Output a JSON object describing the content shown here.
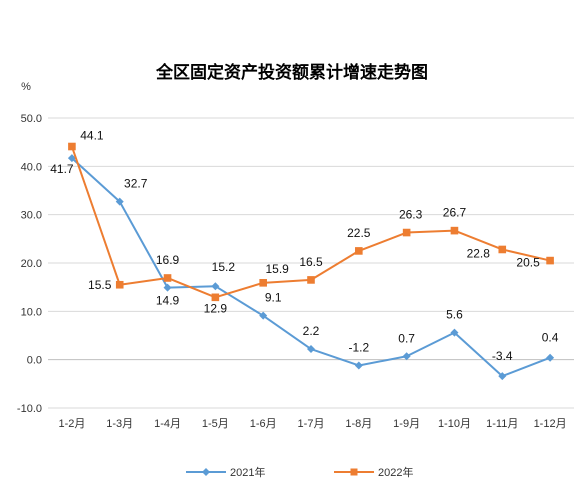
{
  "chart_data": {
    "type": "line",
    "title": "全区固定资产投资额累计增速走势图",
    "ylabel": "%",
    "xlabel": "",
    "ylim": [
      -10,
      50
    ],
    "yticks": [
      "-10.0",
      "0.0",
      "10.0",
      "20.0",
      "30.0",
      "40.0",
      "50.0"
    ],
    "categories": [
      "1-2月",
      "1-3月",
      "1-4月",
      "1-5月",
      "1-6月",
      "1-7月",
      "1-8月",
      "1-9月",
      "1-10月",
      "1-11月",
      "1-12月"
    ],
    "grid": true,
    "legend": "bottom",
    "series": [
      {
        "name": "2021年",
        "marker": "diamond",
        "color": "#5b9bd5",
        "values": [
          41.7,
          32.7,
          14.9,
          15.2,
          9.1,
          2.2,
          -1.2,
          0.7,
          5.6,
          -3.4,
          0.4
        ],
        "labels": [
          "41.7",
          "32.7",
          "14.9",
          "15.2",
          "9.1",
          "2.2",
          "-1.2",
          "0.7",
          "5.6",
          "-3.4",
          "0.4"
        ]
      },
      {
        "name": "2022年",
        "marker": "square",
        "color": "#ed7d31",
        "values": [
          44.1,
          15.5,
          16.9,
          12.9,
          15.9,
          16.5,
          22.5,
          26.3,
          26.7,
          22.8,
          20.5
        ],
        "labels": [
          "44.1",
          "15.5",
          "16.9",
          "12.9",
          "15.9",
          "16.5",
          "22.5",
          "26.3",
          "26.7",
          "22.8",
          "20.5"
        ]
      }
    ]
  }
}
